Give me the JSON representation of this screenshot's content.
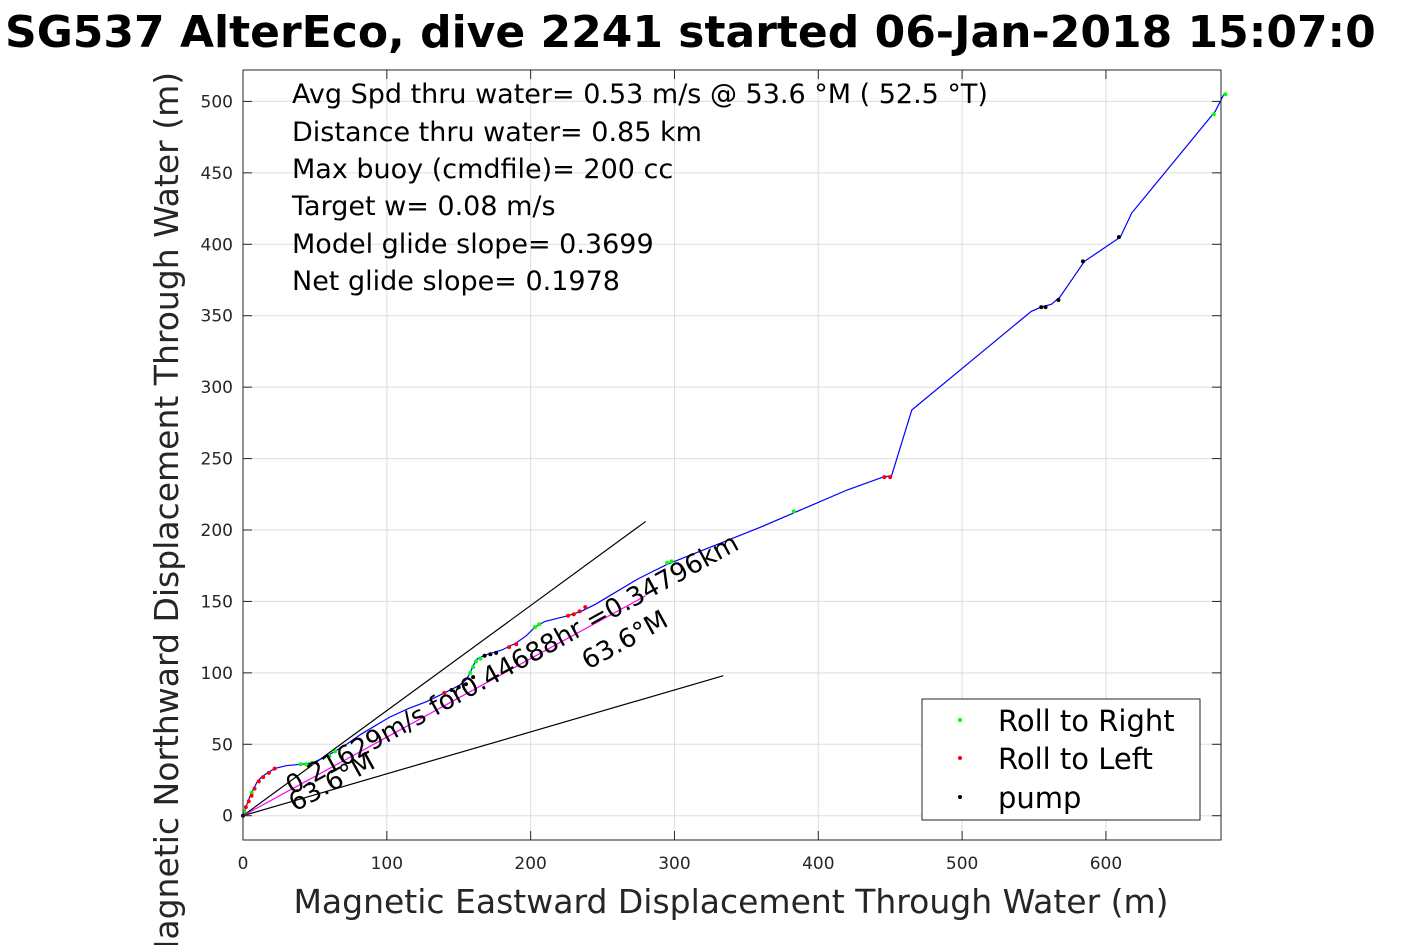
{
  "chart_data": {
    "type": "scatter",
    "title": "SG537 AlterEco, dive 2241 started 06-Jan-2018 15:07:0",
    "xlabel": "Magnetic Eastward Displacement Through Water (m)",
    "ylabel": "Magnetic Northward Displacement Through Water (m)",
    "xlim": [
      0,
      680
    ],
    "ylim": [
      -17,
      522
    ],
    "x_ticks": [
      0,
      100,
      200,
      300,
      400,
      500,
      600
    ],
    "y_ticks": [
      0,
      50,
      100,
      150,
      200,
      250,
      300,
      350,
      400,
      450,
      500
    ],
    "x_tick_labels": [
      "0",
      "100",
      "200",
      "300",
      "400",
      "500",
      "600"
    ],
    "y_tick_labels": [
      "0",
      "50",
      "100",
      "150",
      "200",
      "250",
      "300",
      "350",
      "400",
      "450",
      "500"
    ],
    "grid": true,
    "annotations": [
      "Avg Spd thru water=  0.53 m/s @  53.6 °M ( 52.5 °T)",
      "Distance thru water=  0.85 km",
      "Max buoy (cmdfile)= 200 cc",
      "Target w= 0.08 m/s",
      "Model glide slope= 0.3699",
      "Net glide slope= 0.1978"
    ],
    "inplot_labels": {
      "current": "0.21629m/s for0.44688hr =0.34796km",
      "heading_1": "63.6°M",
      "heading_2": "63.6°M"
    },
    "track": [
      [
        0,
        0
      ],
      [
        2,
        6
      ],
      [
        5,
        14
      ],
      [
        8,
        20
      ],
      [
        10,
        24
      ],
      [
        13,
        27
      ],
      [
        17,
        30
      ],
      [
        22,
        33
      ],
      [
        30,
        35
      ],
      [
        40,
        36
      ],
      [
        48,
        37
      ],
      [
        55,
        40
      ],
      [
        62,
        44
      ],
      [
        72,
        50
      ],
      [
        82,
        57
      ],
      [
        92,
        63
      ],
      [
        102,
        69
      ],
      [
        115,
        75
      ],
      [
        128,
        80
      ],
      [
        140,
        86
      ],
      [
        150,
        91
      ],
      [
        155,
        95
      ],
      [
        158,
        100
      ],
      [
        160,
        105
      ],
      [
        163,
        110
      ],
      [
        170,
        113
      ],
      [
        180,
        116
      ],
      [
        190,
        121
      ],
      [
        197,
        126
      ],
      [
        203,
        132
      ],
      [
        210,
        136
      ],
      [
        218,
        138
      ],
      [
        226,
        140
      ],
      [
        235,
        143
      ],
      [
        245,
        148
      ],
      [
        255,
        154
      ],
      [
        265,
        160
      ],
      [
        275,
        166
      ],
      [
        285,
        171
      ],
      [
        295,
        176
      ],
      [
        305,
        180
      ],
      [
        330,
        190
      ],
      [
        360,
        202
      ],
      [
        390,
        215
      ],
      [
        420,
        228
      ],
      [
        445,
        237
      ],
      [
        451,
        238
      ],
      [
        465,
        284
      ],
      [
        548,
        353
      ],
      [
        555,
        356
      ],
      [
        562,
        358
      ],
      [
        568,
        363
      ],
      [
        585,
        388
      ],
      [
        610,
        405
      ],
      [
        618,
        422
      ],
      [
        676,
        493
      ],
      [
        682,
        505
      ]
    ],
    "current_line": [
      [
        0,
        0
      ],
      [
        280,
        154
      ]
    ],
    "glide_lines": [
      [
        [
          0,
          0
        ],
        [
          280,
          206
        ]
      ],
      [
        [
          0,
          0
        ],
        [
          334,
          98
        ]
      ]
    ],
    "series": [
      {
        "name": "Roll to Right",
        "color": "#00ff00",
        "points": [
          [
            1,
            3
          ],
          [
            6,
            16
          ],
          [
            40,
            36
          ],
          [
            44,
            36
          ],
          [
            48,
            37
          ],
          [
            60,
            42
          ],
          [
            64,
            45
          ],
          [
            158,
            100
          ],
          [
            160,
            104
          ],
          [
            162,
            108
          ],
          [
            165,
            110
          ],
          [
            203,
            132
          ],
          [
            206,
            134
          ],
          [
            295,
            177
          ],
          [
            298,
            178
          ],
          [
            383,
            213
          ],
          [
            675,
            491
          ],
          [
            683,
            505
          ]
        ]
      },
      {
        "name": "Roll to Left",
        "color": "#ff0000",
        "points": [
          [
            2,
            6
          ],
          [
            4,
            10
          ],
          [
            6,
            14
          ],
          [
            8,
            19
          ],
          [
            11,
            24
          ],
          [
            14,
            27
          ],
          [
            18,
            30
          ],
          [
            22,
            33
          ],
          [
            140,
            86
          ],
          [
            185,
            118
          ],
          [
            190,
            120
          ],
          [
            226,
            140
          ],
          [
            230,
            141
          ],
          [
            234,
            143
          ],
          [
            238,
            146
          ],
          [
            446,
            237
          ],
          [
            450,
            237
          ]
        ]
      },
      {
        "name": "pump",
        "color": "#000000",
        "points": [
          [
            0,
            0
          ],
          [
            145,
            88
          ],
          [
            150,
            90
          ],
          [
            155,
            92
          ],
          [
            160,
            97
          ],
          [
            168,
            112
          ],
          [
            172,
            113
          ],
          [
            176,
            114
          ],
          [
            555,
            356
          ],
          [
            558,
            356
          ],
          [
            567,
            361
          ],
          [
            584,
            388
          ],
          [
            609,
            405
          ]
        ]
      }
    ],
    "legend_position": "bottom-right",
    "track_color": "#0000ff"
  }
}
